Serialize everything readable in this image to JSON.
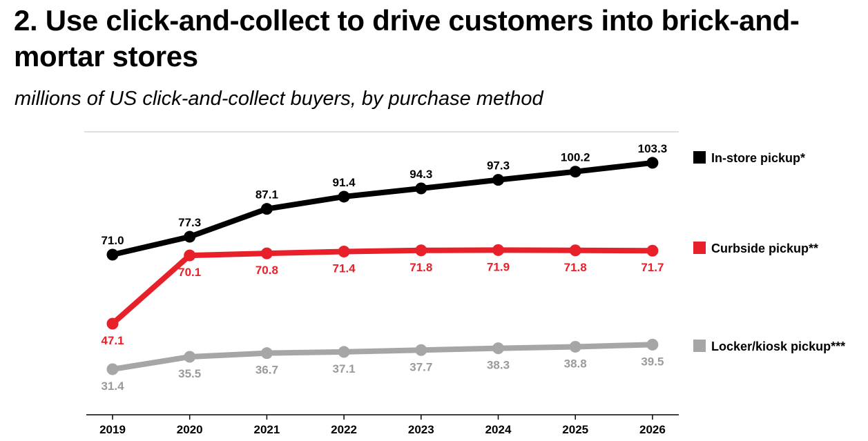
{
  "header": {
    "title": "2. Use click-and-collect to drive customers into brick-and-mortar stores",
    "subtitle": "millions of US click-and-collect buyers, by purchase method"
  },
  "chart_data": {
    "type": "line",
    "categories": [
      "2019",
      "2020",
      "2021",
      "2022",
      "2023",
      "2024",
      "2025",
      "2026"
    ],
    "series": [
      {
        "name": "In-store pickup*",
        "color": "#000000",
        "values": [
          71.0,
          77.3,
          87.1,
          91.4,
          94.3,
          97.3,
          100.2,
          103.3
        ],
        "labels": [
          "71.0",
          "77.3",
          "87.1",
          "91.4",
          "94.3",
          "97.3",
          "100.2",
          "103.3"
        ],
        "label_position": "above"
      },
      {
        "name": "Curbside pickup**",
        "color": "#e8202a",
        "values": [
          47.1,
          70.1,
          70.8,
          71.4,
          71.8,
          71.9,
          71.8,
          71.7
        ],
        "labels": [
          "47.1",
          "70.1",
          "70.8",
          "71.4",
          "71.8",
          "71.9",
          "71.8",
          "71.7"
        ],
        "label_position": "below"
      },
      {
        "name": "Locker/kiosk pickup***",
        "color": "#a6a6a6",
        "values": [
          31.4,
          35.5,
          36.7,
          37.1,
          37.7,
          38.3,
          38.8,
          39.5
        ],
        "labels": [
          "31.4",
          "35.5",
          "36.7",
          "37.1",
          "37.7",
          "38.3",
          "38.8",
          "39.5"
        ],
        "label_position": "below"
      }
    ],
    "title": "2. Use click-and-collect to drive customers into brick-and-mortar stores",
    "subtitle": "millions of US click-and-collect buyers, by purchase method",
    "xlabel": "",
    "ylabel": "",
    "legend": "right",
    "grid": false
  }
}
